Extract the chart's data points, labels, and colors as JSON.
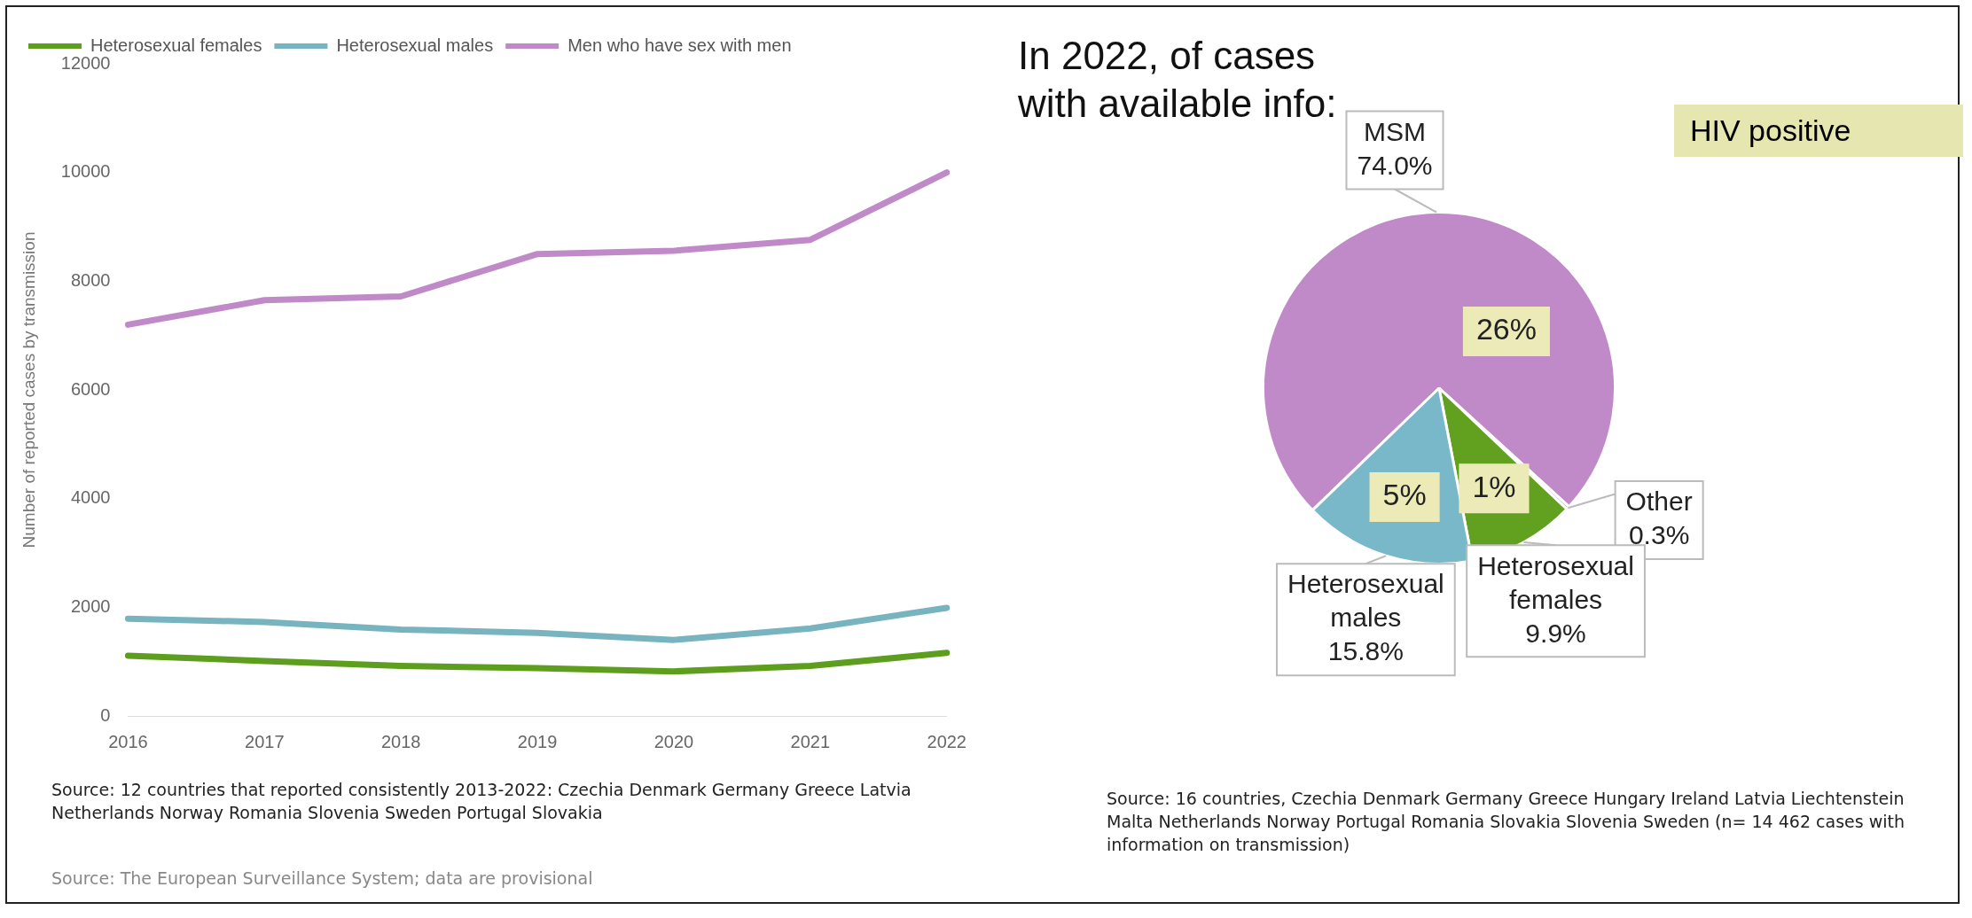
{
  "chart_data": [
    {
      "type": "line",
      "ylabel": "Number of reported cases by transmission",
      "categories": [
        "2016",
        "2017",
        "2018",
        "2019",
        "2020",
        "2021",
        "2022"
      ],
      "ylim": [
        0,
        12000
      ],
      "yticks": [
        0,
        2000,
        4000,
        6000,
        8000,
        10000,
        12000
      ],
      "grid": false,
      "legend": "top left",
      "marker": "none",
      "series": [
        {
          "name": "Heterosexual females",
          "color": "#5e9e1e",
          "values": [
            1110,
            1010,
            920,
            880,
            820,
            920,
            1160
          ]
        },
        {
          "name": "Heterosexual males",
          "color": "#78b4c0",
          "values": [
            1790,
            1730,
            1590,
            1530,
            1400,
            1610,
            1990
          ]
        },
        {
          "name": "Men who have sex with men",
          "color": "#c08ac8",
          "values": [
            7200,
            7650,
            7720,
            8500,
            8560,
            8760,
            10000
          ]
        }
      ],
      "annotations": [
        "Source: 12 countries that reported consistently 2013-2022: Czechia Denmark Germany Greece Latvia Netherlands Norway Romania Slovenia Sweden Portugal Slovakia",
        "Source: The European Surveillance System; data are provisional"
      ]
    },
    {
      "type": "pie",
      "title": "In 2022, of cases with available info:",
      "subtitle": "HIV positive",
      "categories": [
        "MSM",
        "Other",
        "Heterosexual females",
        "Heterosexual males"
      ],
      "values": [
        74.0,
        0.3,
        9.9,
        15.8
      ],
      "colors": [
        "#c08ac8",
        "#c08ac8",
        "#62a020",
        "#78b8c8"
      ],
      "value_labels": [
        "74.0%",
        "0.3%",
        "9.9%",
        "15.8%"
      ],
      "legend": false,
      "annotations": [
        {
          "text": "26%",
          "x": "MSM"
        },
        {
          "text": "1%",
          "x": "Heterosexual females"
        },
        {
          "text": "5%",
          "x": "Heterosexual males"
        },
        "Source: 16 countries, Czechia Denmark Germany Greece Hungary Ireland Latvia Liechtenstein Malta Netherlands Norway Portugal Romania Slovakia Slovenia Sweden (n= 14 462 cases with information on transmission)"
      ]
    }
  ]
}
